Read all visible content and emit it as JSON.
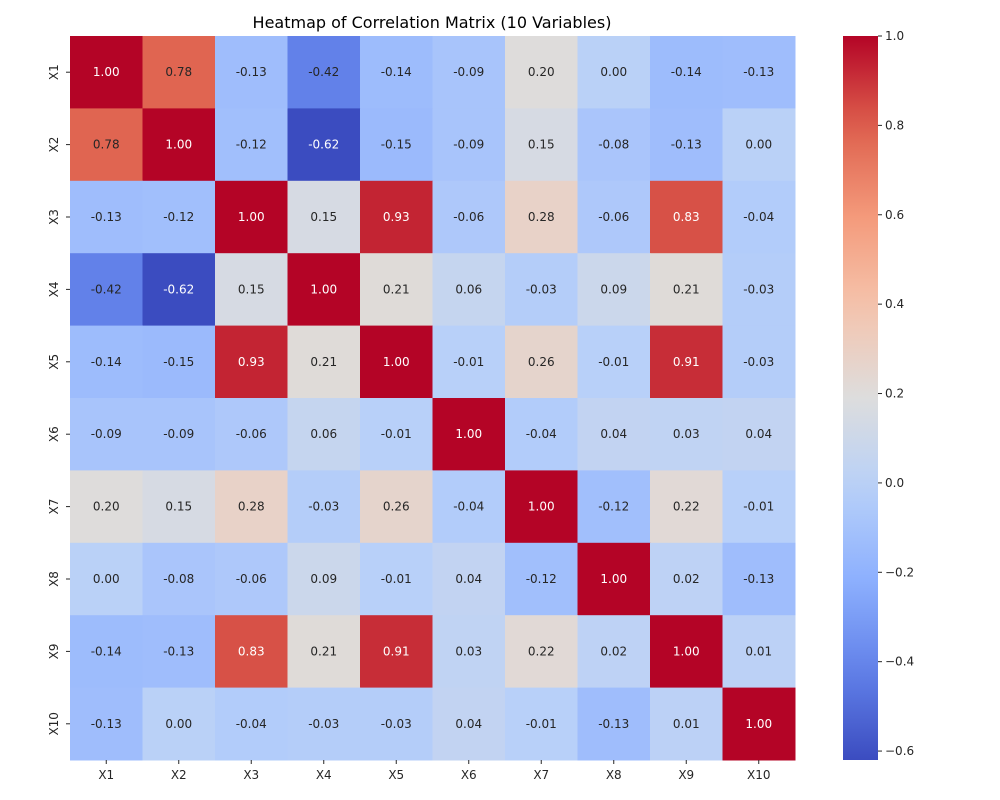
{
  "chart_data": {
    "type": "heatmap",
    "title": "Heatmap of Correlation Matrix (10 Variables)",
    "xlabel": "",
    "ylabel": "",
    "x_labels": [
      "X1",
      "X2",
      "X3",
      "X4",
      "X5",
      "X6",
      "X7",
      "X8",
      "X9",
      "X10"
    ],
    "y_labels": [
      "X1",
      "X2",
      "X3",
      "X4",
      "X5",
      "X6",
      "X7",
      "X8",
      "X9",
      "X10"
    ],
    "values": [
      [
        1.0,
        0.78,
        -0.13,
        -0.42,
        -0.14,
        -0.09,
        0.2,
        -0.0,
        -0.14,
        -0.13
      ],
      [
        0.78,
        1.0,
        -0.12,
        -0.62,
        -0.15,
        -0.09,
        0.15,
        -0.08,
        -0.13,
        -0.0
      ],
      [
        -0.13,
        -0.12,
        1.0,
        0.15,
        0.93,
        -0.06,
        0.28,
        -0.06,
        0.83,
        -0.04
      ],
      [
        -0.42,
        -0.62,
        0.15,
        1.0,
        0.21,
        0.06,
        -0.03,
        0.09,
        0.21,
        -0.03
      ],
      [
        -0.14,
        -0.15,
        0.93,
        0.21,
        1.0,
        -0.01,
        0.26,
        -0.01,
        0.91,
        -0.03
      ],
      [
        -0.09,
        -0.09,
        -0.06,
        0.06,
        -0.01,
        1.0,
        -0.04,
        0.04,
        0.03,
        0.04
      ],
      [
        0.2,
        0.15,
        0.28,
        -0.03,
        0.26,
        -0.04,
        1.0,
        -0.12,
        0.22,
        -0.01
      ],
      [
        -0.0,
        -0.08,
        -0.06,
        0.09,
        -0.01,
        0.04,
        -0.12,
        1.0,
        0.02,
        -0.13
      ],
      [
        -0.14,
        -0.13,
        0.83,
        0.21,
        0.91,
        0.03,
        0.22,
        0.02,
        1.0,
        0.01
      ],
      [
        -0.13,
        -0.0,
        -0.04,
        -0.03,
        -0.03,
        0.04,
        -0.01,
        -0.13,
        0.01,
        1.0
      ]
    ],
    "annotation_format": "0.00",
    "colormap": "coolwarm",
    "vmin": -0.62,
    "vmax": 1.0,
    "colorbar": {
      "placement": "right",
      "ticks": [
        -0.6,
        -0.4,
        -0.2,
        0.0,
        0.2,
        0.4,
        0.6,
        0.8,
        1.0
      ],
      "tick_labels": [
        "−0.6",
        "−0.4",
        "−0.2",
        "0.0",
        "0.2",
        "0.4",
        "0.6",
        "0.8",
        "1.0"
      ]
    },
    "grid": false
  }
}
